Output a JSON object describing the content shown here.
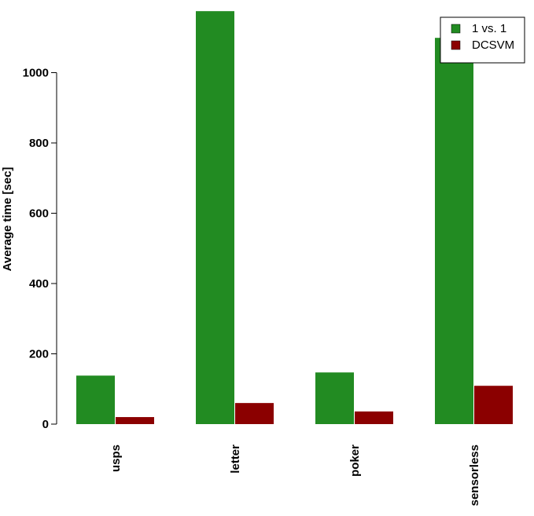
{
  "chart_data": {
    "type": "bar",
    "title": "",
    "xlabel": "",
    "ylabel": "Average time [sec]",
    "categories": [
      "usps",
      "letter",
      "poker",
      "sensorless"
    ],
    "series": [
      {
        "name": "1 vs. 1",
        "color": "#228B22",
        "values": [
          138,
          1175,
          147,
          1099
        ]
      },
      {
        "name": "DCSVM",
        "color": "#8B0000",
        "values": [
          20,
          60,
          36,
          109
        ]
      }
    ],
    "ylim": [
      0,
      1175
    ],
    "yticks": [
      0,
      200,
      400,
      600,
      800,
      1000
    ],
    "legend_position": "top-right",
    "grid": false
  }
}
